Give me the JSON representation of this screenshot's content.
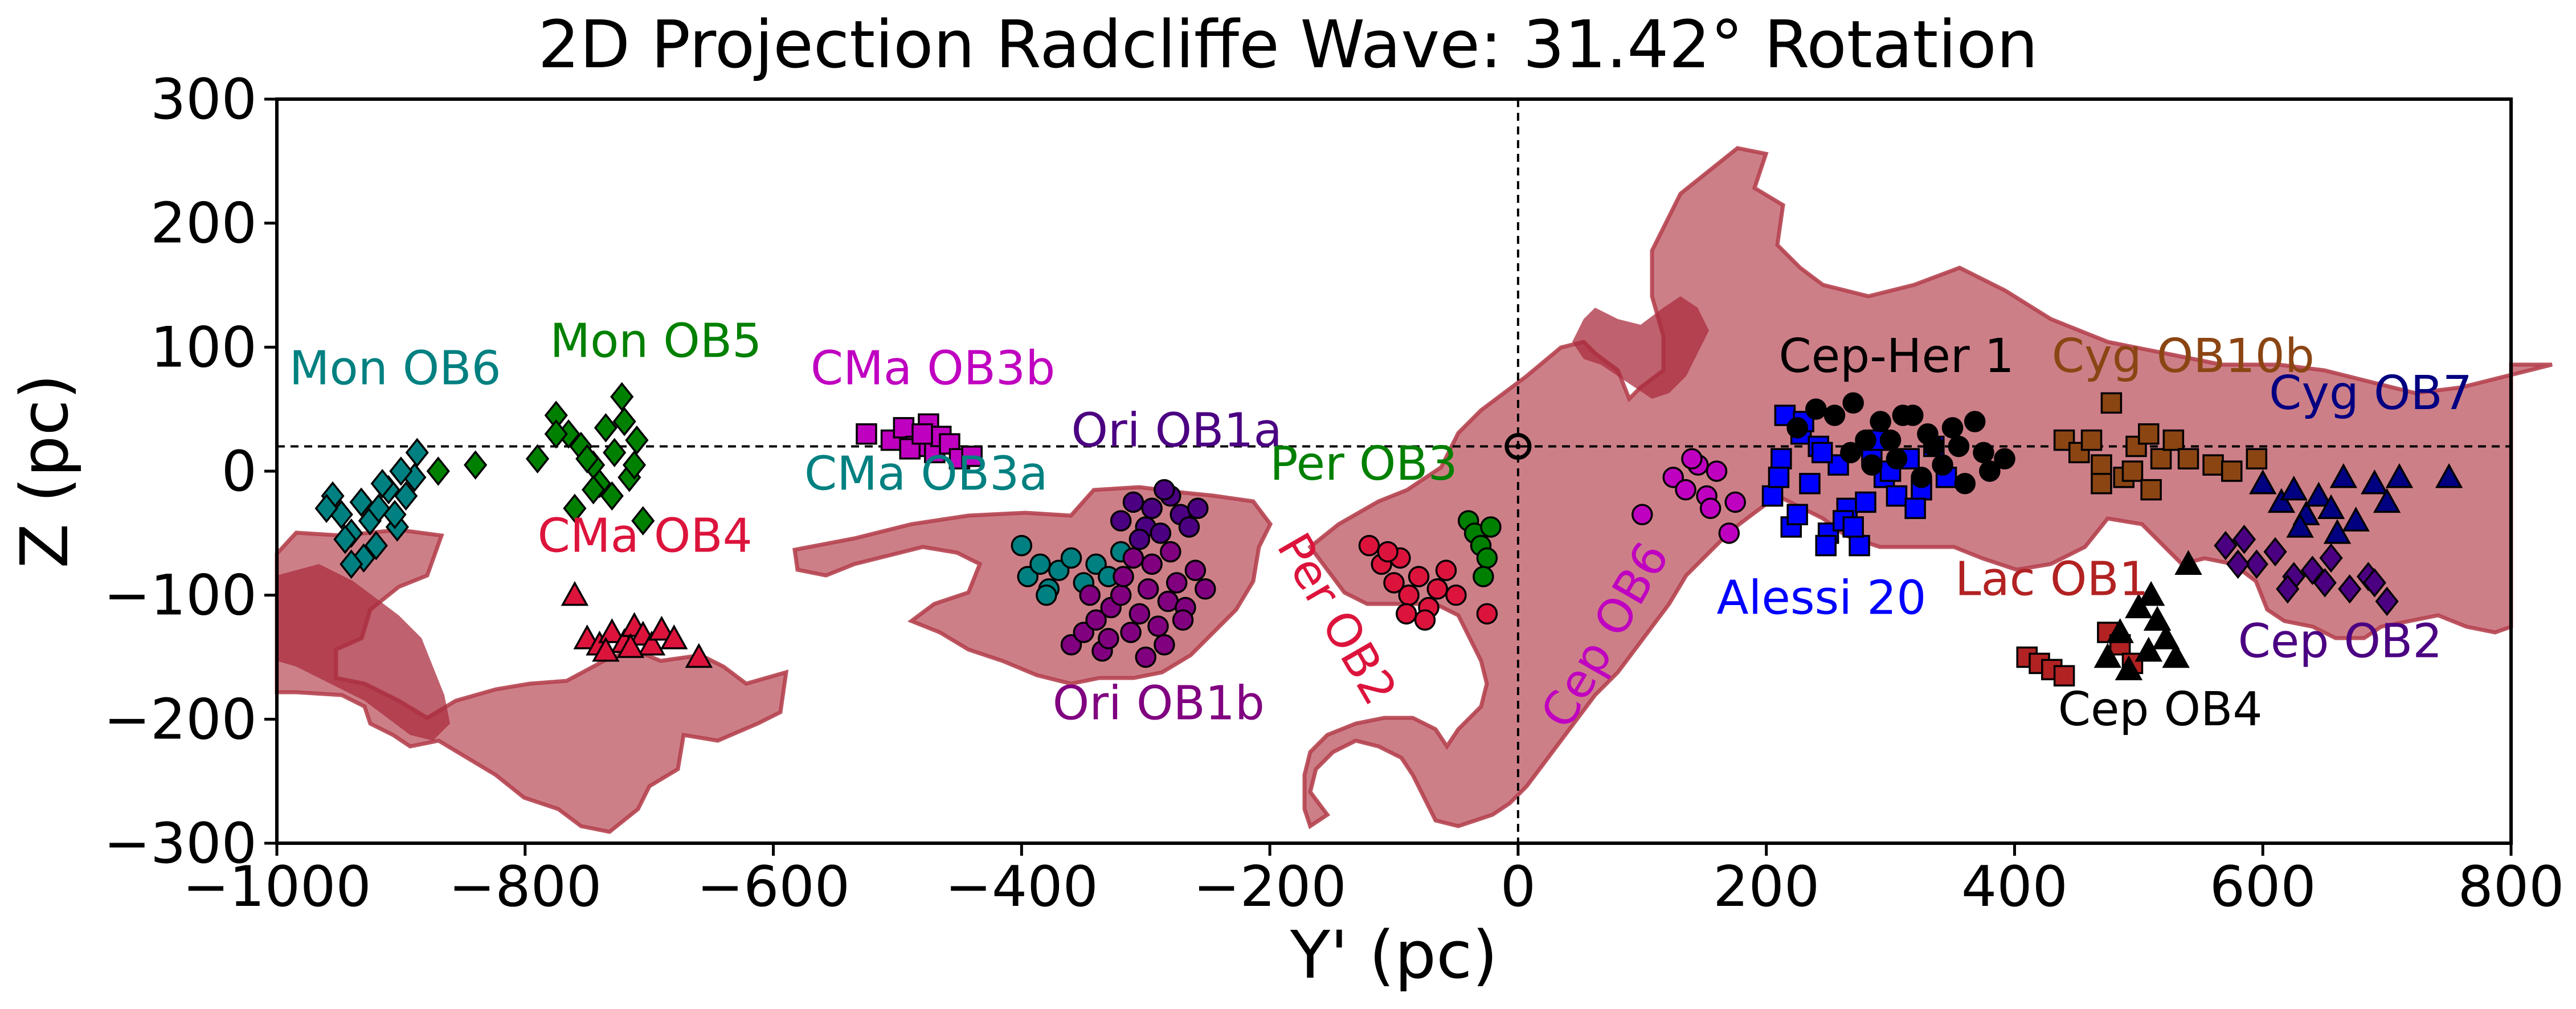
{
  "chart_data": {
    "type": "scatter",
    "title": "2D Projection Radcliffe Wave: 31.42° Rotation",
    "xlabel": "Y' (pc)",
    "ylabel": "Z (pc)",
    "xlim": [
      -1000,
      800
    ],
    "ylim": [
      -300,
      300
    ],
    "xticks": [
      -1000,
      -800,
      -600,
      -400,
      -200,
      0,
      200,
      400,
      600,
      800
    ],
    "xtick_labels": [
      "−1000",
      "−800",
      "−600",
      "−400",
      "−200",
      "0",
      "200",
      "400",
      "600",
      "800"
    ],
    "yticks": [
      -300,
      -200,
      -100,
      0,
      100,
      200,
      300
    ],
    "ytick_labels": [
      "−300",
      "−200",
      "−100",
      "0",
      "100",
      "200",
      "300"
    ],
    "grid": false,
    "reference_lines": {
      "horizontal_z": 20,
      "vertical_y": 0
    },
    "sun_marker": {
      "x": 0,
      "y": 20,
      "symbol": "circled-dot"
    },
    "cloud_color": "#b5434f",
    "series": [
      {
        "name": "Mon OB6",
        "marker": "diamond",
        "color": "#008080",
        "x": [
          -955,
          -948,
          -940,
          -932,
          -925,
          -918,
          -910,
          -903,
          -896,
          -889,
          -960,
          -945,
          -930,
          -915,
          -900,
          -887,
          -940,
          -920,
          -905
        ],
        "y": [
          -20,
          -35,
          -50,
          -25,
          -40,
          -30,
          -15,
          -45,
          -20,
          -5,
          -30,
          -55,
          -70,
          -10,
          0,
          15,
          -75,
          -60,
          -35
        ]
      },
      {
        "name": "Mon OB5",
        "marker": "diamond",
        "color": "#008000",
        "x": [
          -870,
          -840,
          -790,
          -775,
          -765,
          -755,
          -745,
          -740,
          -735,
          -728,
          -722,
          -716,
          -710,
          -705,
          -760,
          -750,
          -730,
          -720,
          -775,
          -745,
          -712
        ],
        "y": [
          0,
          5,
          10,
          45,
          30,
          20,
          5,
          -10,
          35,
          15,
          60,
          -5,
          25,
          -40,
          -30,
          10,
          -20,
          40,
          30,
          -15,
          5
        ]
      },
      {
        "name": "CMa OB4",
        "marker": "triangle",
        "color": "#dc143c",
        "x": [
          -760,
          -750,
          -740,
          -730,
          -720,
          -712,
          -705,
          -698,
          -690,
          -680,
          -660,
          -735,
          -715
        ],
        "y": [
          -100,
          -135,
          -140,
          -130,
          -138,
          -125,
          -132,
          -140,
          -128,
          -135,
          -150,
          -145,
          -142
        ]
      },
      {
        "name": "CMa OB3b",
        "marker": "square",
        "color": "#c000c0",
        "x": [
          -525,
          -505,
          -495,
          -485,
          -475,
          -470,
          -465,
          -458,
          -450,
          -440,
          -490,
          -480
        ],
        "y": [
          30,
          25,
          35,
          20,
          38,
          15,
          28,
          22,
          10,
          12,
          18,
          30
        ]
      },
      {
        "name": "CMa OB3a",
        "marker": "circle",
        "color": "#008080",
        "x": [
          -400,
          -395,
          -385,
          -378,
          -370,
          -360,
          -350,
          -340,
          -330,
          -320,
          -380
        ],
        "y": [
          -60,
          -85,
          -75,
          -95,
          -80,
          -70,
          -90,
          -75,
          -85,
          -65,
          -100
        ]
      },
      {
        "name": "Ori OB1a",
        "marker": "circle",
        "color": "#4b0082",
        "x": [
          -320,
          -310,
          -300,
          -295,
          -288,
          -280,
          -272,
          -265,
          -258,
          -305,
          -285
        ],
        "y": [
          -40,
          -25,
          -45,
          -30,
          -50,
          -20,
          -35,
          -45,
          -30,
          -55,
          -15
        ]
      },
      {
        "name": "Ori OB1b",
        "marker": "circle",
        "color": "#800080",
        "x": [
          -360,
          -350,
          -340,
          -335,
          -328,
          -320,
          -312,
          -305,
          -298,
          -290,
          -282,
          -275,
          -268,
          -260,
          -252,
          -345,
          -330,
          -318,
          -300,
          -285,
          -270,
          -310,
          -295,
          -280
        ],
        "y": [
          -140,
          -130,
          -120,
          -145,
          -110,
          -100,
          -130,
          -115,
          -95,
          -125,
          -105,
          -90,
          -110,
          -80,
          -95,
          -100,
          -135,
          -85,
          -150,
          -140,
          -120,
          -70,
          -75,
          -65
        ]
      },
      {
        "name": "Per OB3",
        "marker": "circle",
        "color": "#008000",
        "x": [
          -40,
          -35,
          -30,
          -25,
          -22,
          -28
        ],
        "y": [
          -40,
          -50,
          -60,
          -70,
          -45,
          -85
        ]
      },
      {
        "name": "Per OB2",
        "marker": "circle",
        "color": "#dc143c",
        "x": [
          -120,
          -110,
          -100,
          -95,
          -88,
          -80,
          -72,
          -65,
          -58,
          -50,
          -105,
          -90,
          -75,
          -25
        ],
        "y": [
          -60,
          -75,
          -90,
          -70,
          -100,
          -85,
          -110,
          -95,
          -80,
          -100,
          -65,
          -115,
          -120,
          -115
        ]
      },
      {
        "name": "Cep OB6",
        "marker": "circle",
        "color": "#c000c0",
        "x": [
          100,
          125,
          135,
          145,
          152,
          160,
          170,
          140,
          155,
          175
        ],
        "y": [
          -35,
          -5,
          -15,
          5,
          -20,
          0,
          -50,
          10,
          -30,
          -25
        ]
      },
      {
        "name": "Alessi 20",
        "marker": "square",
        "color": "#0000ff",
        "x": [
          205,
          212,
          220,
          228,
          235,
          242,
          250,
          258,
          265,
          275,
          285,
          295,
          305,
          315,
          325,
          335,
          345,
          215,
          230,
          248,
          262,
          280,
          300,
          320,
          210,
          225,
          245,
          270,
          290
        ],
        "y": [
          -20,
          10,
          -45,
          30,
          -10,
          20,
          -50,
          5,
          -30,
          -60,
          15,
          -5,
          -20,
          10,
          -15,
          20,
          -5,
          45,
          40,
          -60,
          -40,
          -25,
          0,
          -30,
          -5,
          -35,
          15,
          -45,
          25
        ]
      },
      {
        "name": "Cep-Her 1",
        "marker": "circle",
        "color": "#000000",
        "x": [
          225,
          240,
          255,
          268,
          280,
          292,
          305,
          318,
          330,
          342,
          355,
          368,
          380,
          392,
          270,
          300,
          325,
          350,
          375,
          285,
          310,
          335,
          360
        ],
        "y": [
          35,
          50,
          45,
          15,
          25,
          40,
          10,
          45,
          30,
          5,
          20,
          40,
          0,
          10,
          55,
          25,
          -5,
          35,
          15,
          5,
          45,
          20,
          -10
        ]
      },
      {
        "name": "Lac OB1",
        "marker": "square",
        "color": "#b22222",
        "x": [
          410,
          420,
          430,
          440,
          475,
          485,
          495
        ],
        "y": [
          -150,
          -155,
          -160,
          -165,
          -130,
          -140,
          -155
        ]
      },
      {
        "name": "Cep OB4",
        "marker": "triangle",
        "color": "#000000",
        "x": [
          475,
          485,
          492,
          500,
          508,
          515,
          522,
          530,
          510,
          540
        ],
        "y": [
          -150,
          -130,
          -160,
          -110,
          -145,
          -120,
          -135,
          -150,
          -100,
          -75
        ]
      },
      {
        "name": "Cyg OB10b",
        "marker": "square",
        "color": "#8b4513",
        "x": [
          440,
          452,
          462,
          470,
          478,
          488,
          498,
          508,
          518,
          528,
          470,
          495,
          510,
          540,
          560,
          575,
          595
        ],
        "y": [
          25,
          15,
          25,
          5,
          55,
          -5,
          20,
          30,
          10,
          25,
          -10,
          0,
          -15,
          10,
          5,
          0,
          10
        ]
      },
      {
        "name": "Cyg OB7",
        "marker": "triangle",
        "color": "#000080",
        "x": [
          600,
          615,
          625,
          635,
          645,
          655,
          665,
          675,
          690,
          700,
          710,
          750,
          630,
          660
        ],
        "y": [
          -10,
          -25,
          -15,
          -35,
          -20,
          -30,
          -5,
          -40,
          -10,
          -25,
          -5,
          -5,
          -45,
          -50
        ]
      },
      {
        "name": "Cep OB2",
        "marker": "diamond",
        "color": "#4b0082",
        "x": [
          570,
          585,
          595,
          610,
          625,
          640,
          655,
          670,
          685,
          700,
          580,
          620,
          650,
          690
        ],
        "y": [
          -60,
          -55,
          -75,
          -65,
          -85,
          -80,
          -70,
          -95,
          -85,
          -105,
          -75,
          -95,
          -90,
          -90
        ]
      }
    ],
    "labels": [
      {
        "text": "Mon OB6",
        "x": -990,
        "y": 70,
        "color": "#008080"
      },
      {
        "text": "Mon OB5",
        "x": -780,
        "y": 92,
        "color": "#008000"
      },
      {
        "text": "CMa OB3b",
        "x": -570,
        "y": 70,
        "color": "#c000c0"
      },
      {
        "text": "CMa OB4",
        "x": -790,
        "y": -65,
        "color": "#dc143c"
      },
      {
        "text": "CMa OB3a",
        "x": -575,
        "y": -15,
        "color": "#008080"
      },
      {
        "text": "Ori OB1a",
        "x": -360,
        "y": 20,
        "color": "#4b0082"
      },
      {
        "text": "Per OB3",
        "x": -200,
        "y": -7,
        "color": "#008000"
      },
      {
        "text": "Per OB2",
        "x": -195,
        "y": -60,
        "color": "#dc143c",
        "rotate": 60
      },
      {
        "text": "Ori OB1b",
        "x": -375,
        "y": -200,
        "color": "#800080"
      },
      {
        "text": "Cep OB6",
        "x": 40,
        "y": -210,
        "color": "#c000c0",
        "rotate": -60
      },
      {
        "text": "Alessi 20",
        "x": 160,
        "y": -115,
        "color": "#0000ff"
      },
      {
        "text": "Cep-Her 1",
        "x": 210,
        "y": 80,
        "color": "#000000"
      },
      {
        "text": "Cyg OB10b",
        "x": 430,
        "y": 80,
        "color": "#8b4513"
      },
      {
        "text": "Cyg OB7",
        "x": 605,
        "y": 50,
        "color": "#000080"
      },
      {
        "text": "Lac OB1",
        "x": 352,
        "y": -100,
        "color": "#b22222"
      },
      {
        "text": "Cep OB2",
        "x": 580,
        "y": -150,
        "color": "#4b0082"
      },
      {
        "text": "Cep OB4",
        "x": 435,
        "y": -205,
        "color": "#000000"
      }
    ]
  }
}
